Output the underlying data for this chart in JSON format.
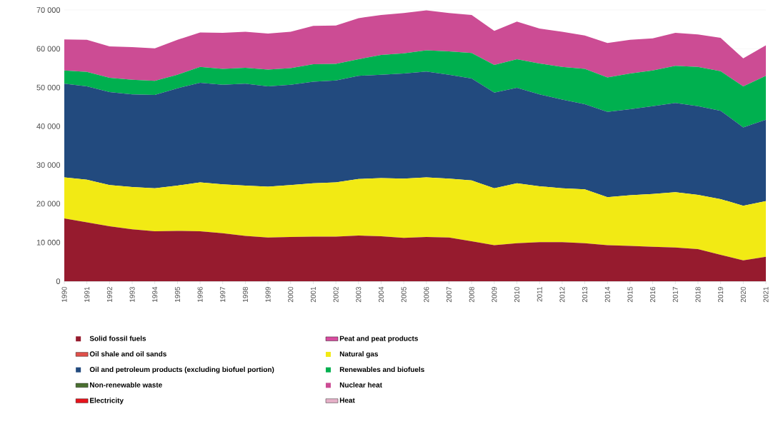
{
  "chart_data": {
    "type": "area",
    "stacked": true,
    "categories": [
      "1990",
      "1991",
      "1992",
      "1993",
      "1994",
      "1995",
      "1996",
      "1997",
      "1998",
      "1999",
      "2000",
      "2001",
      "2002",
      "2003",
      "2004",
      "2005",
      "2006",
      "2007",
      "2008",
      "2009",
      "2010",
      "2011",
      "2012",
      "2013",
      "2014",
      "2015",
      "2016",
      "2017",
      "2018",
      "2019",
      "2020",
      "2021"
    ],
    "series": [
      {
        "name": "Solid fossil fuels",
        "color": "#961b2e",
        "values": [
          16200,
          15200,
          14200,
          13400,
          12900,
          13000,
          12900,
          12400,
          11700,
          11300,
          11400,
          11500,
          11500,
          11800,
          11600,
          11200,
          11400,
          11300,
          10300,
          9300,
          9800,
          10100,
          10100,
          9800,
          9300,
          9100,
          8900,
          8700,
          8300,
          6800,
          5400,
          6300
        ]
      },
      {
        "name": "Peat and peat products",
        "color": "#d64c9e",
        "values": [
          null,
          null,
          null,
          null,
          null,
          null,
          null,
          null,
          null,
          null,
          null,
          null,
          null,
          null,
          null,
          null,
          null,
          null,
          null,
          null,
          null,
          null,
          null,
          null,
          null,
          null,
          null,
          null,
          null,
          null,
          null,
          null
        ]
      },
      {
        "name": "Oil shale and oil sands",
        "color": "#e0504a",
        "values": [
          null,
          null,
          null,
          null,
          null,
          null,
          null,
          null,
          null,
          null,
          null,
          null,
          null,
          null,
          null,
          null,
          null,
          null,
          null,
          null,
          null,
          null,
          null,
          null,
          null,
          null,
          null,
          null,
          null,
          null,
          null,
          null
        ]
      },
      {
        "name": "Natural gas",
        "color": "#f2ea14",
        "values": [
          10600,
          11000,
          10600,
          10900,
          11100,
          11700,
          12600,
          12600,
          13000,
          13100,
          13400,
          13800,
          14000,
          14600,
          15000,
          15300,
          15400,
          15200,
          15700,
          14700,
          15500,
          14400,
          13900,
          13900,
          12400,
          13100,
          13600,
          14300,
          14000,
          14400,
          14100,
          14400
        ]
      },
      {
        "name": "Oil and petroleum products (excluding biofuel portion)",
        "color": "#224a7e",
        "values": [
          24200,
          24100,
          24000,
          23900,
          24100,
          25100,
          25700,
          25700,
          26300,
          25900,
          25900,
          26200,
          26300,
          26600,
          26700,
          27100,
          27300,
          26800,
          26300,
          24700,
          24600,
          23700,
          22900,
          22000,
          22000,
          22200,
          22700,
          23000,
          22900,
          22800,
          20200,
          21000
        ]
      },
      {
        "name": "Renewables and biofuels",
        "color": "#00b04f",
        "values": [
          3400,
          3700,
          3700,
          3800,
          3600,
          3500,
          4100,
          4100,
          4100,
          4300,
          4300,
          4500,
          4300,
          4300,
          5100,
          5200,
          5500,
          6000,
          6600,
          7100,
          7400,
          8000,
          8400,
          9100,
          8900,
          9200,
          9200,
          9600,
          10100,
          10200,
          10600,
          11300
        ]
      },
      {
        "name": "Non-renewable waste",
        "color": "#4a7030",
        "values": [
          null,
          null,
          null,
          null,
          null,
          null,
          null,
          null,
          null,
          null,
          null,
          null,
          null,
          null,
          null,
          null,
          null,
          null,
          null,
          null,
          null,
          null,
          null,
          null,
          null,
          null,
          null,
          null,
          null,
          null,
          null,
          null
        ]
      },
      {
        "name": "Nuclear heat",
        "color": "#cc4c94",
        "values": [
          8000,
          8300,
          8100,
          8400,
          8400,
          9000,
          8900,
          9300,
          9300,
          9300,
          9400,
          9900,
          9900,
          10600,
          10300,
          10400,
          10300,
          9900,
          9800,
          8800,
          9700,
          9000,
          9100,
          8600,
          8900,
          8700,
          8300,
          8500,
          8400,
          8600,
          7200,
          7900
        ]
      },
      {
        "name": "Electricity",
        "color": "#e8141c",
        "values": [
          null,
          null,
          null,
          null,
          null,
          null,
          null,
          null,
          null,
          null,
          null,
          null,
          null,
          null,
          null,
          null,
          null,
          null,
          null,
          null,
          null,
          null,
          null,
          null,
          null,
          null,
          null,
          null,
          null,
          null,
          null,
          null
        ]
      },
      {
        "name": "Heat",
        "color": "#e6b0c8",
        "values": [
          null,
          null,
          null,
          null,
          null,
          null,
          null,
          null,
          null,
          null,
          null,
          null,
          null,
          null,
          null,
          null,
          null,
          null,
          null,
          null,
          null,
          null,
          null,
          null,
          null,
          null,
          null,
          null,
          null,
          null,
          null,
          null
        ]
      }
    ],
    "ylim": [
      0,
      70000
    ],
    "yticks": [
      0,
      {
        "value": 10000,
        "label": "10 000"
      },
      {
        "value": 20000,
        "label": "20 000"
      },
      {
        "value": 30000,
        "label": "30 000"
      },
      {
        "value": 40000,
        "label": "40 000"
      },
      {
        "value": 50000,
        "label": "50 000"
      },
      {
        "value": 60000,
        "label": "60 000"
      },
      {
        "value": 70000,
        "label": "70 000"
      }
    ],
    "grid": "y",
    "legend": "bottom"
  }
}
